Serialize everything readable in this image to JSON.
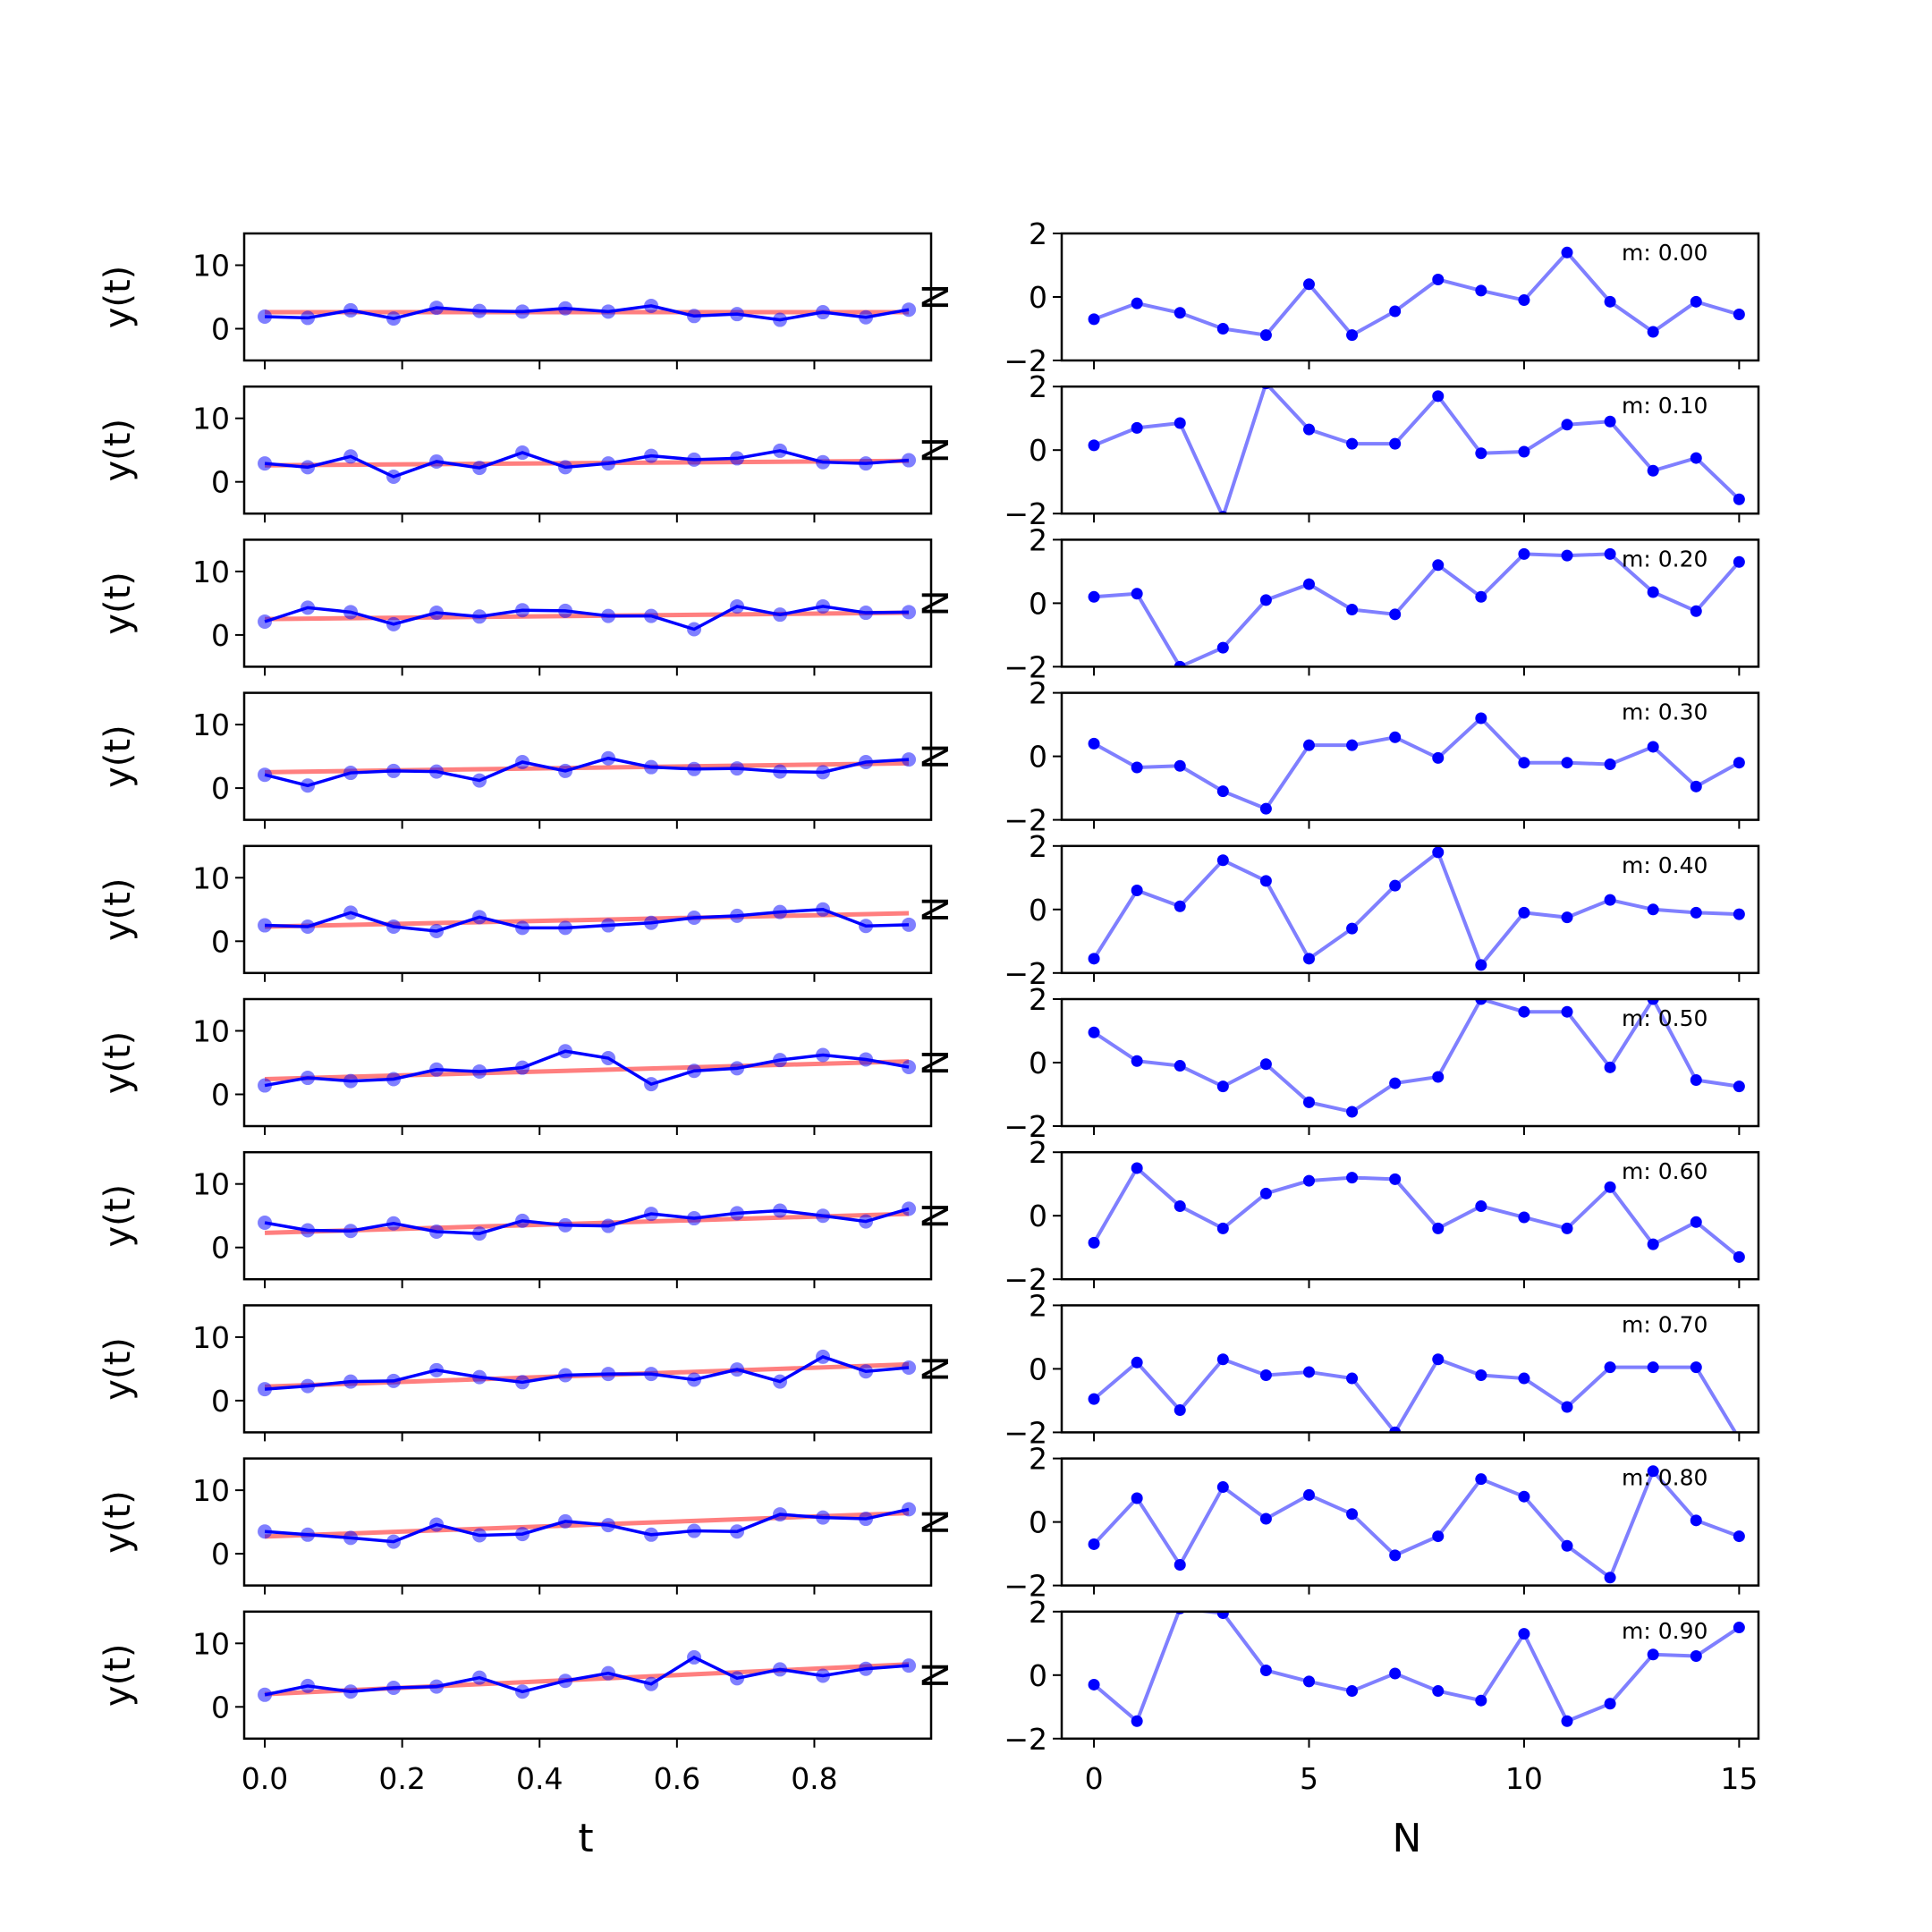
{
  "figure": {
    "left_xlabel": "t",
    "right_xlabel": "N",
    "left_ylabel": "y(t)",
    "right_ylabel": "N"
  },
  "chart_data": [
    {
      "type": "line",
      "panel": "left",
      "t": [
        0.0,
        0.0625,
        0.125,
        0.1875,
        0.25,
        0.3125,
        0.375,
        0.4375,
        0.5,
        0.5625,
        0.625,
        0.6875,
        0.75,
        0.8125,
        0.875,
        0.9375
      ],
      "xticks": [
        "0.0",
        "0.2",
        "0.4",
        "0.6",
        "0.8"
      ],
      "xtick_values": [
        0.0,
        0.2,
        0.4,
        0.6,
        0.8
      ],
      "xlim": [
        -0.03,
        0.97
      ],
      "ylim": [
        -5,
        15
      ],
      "yticks": [
        "0",
        "10"
      ],
      "ytick_values": [
        0,
        10
      ],
      "xlabel": "t",
      "ylabel": "y(t)",
      "colors": {
        "data": "#0000ff",
        "fit": "#ff7f7f"
      },
      "rows": [
        {
          "m": 0.0,
          "y": [
            1.9,
            1.7,
            2.9,
            1.6,
            3.3,
            2.8,
            2.7,
            3.2,
            2.7,
            3.6,
            2.0,
            2.3,
            1.4,
            2.6,
            1.8,
            3.0
          ],
          "fit": [
            2.6,
            2.6
          ]
        },
        {
          "m": 0.1,
          "y": [
            2.9,
            2.3,
            4.0,
            0.8,
            3.2,
            2.2,
            4.6,
            2.3,
            2.9,
            4.1,
            3.5,
            3.7,
            4.9,
            3.1,
            2.9,
            3.4
          ],
          "fit": [
            2.6,
            3.3
          ]
        },
        {
          "m": 0.2,
          "y": [
            2.1,
            4.3,
            3.6,
            1.7,
            3.5,
            2.9,
            3.9,
            3.8,
            3.0,
            3.0,
            0.9,
            4.5,
            3.2,
            4.5,
            3.5,
            3.6
          ],
          "fit": [
            2.5,
            3.5
          ]
        },
        {
          "m": 0.3,
          "y": [
            2.1,
            0.4,
            2.4,
            2.7,
            2.6,
            1.2,
            4.1,
            2.7,
            4.7,
            3.3,
            3.0,
            3.1,
            2.6,
            2.5,
            4.1,
            4.5
          ],
          "fit": [
            2.5,
            3.9
          ]
        },
        {
          "m": 0.4,
          "y": [
            2.5,
            2.3,
            4.5,
            2.3,
            1.6,
            3.8,
            2.1,
            2.1,
            2.5,
            2.9,
            3.7,
            4.0,
            4.6,
            5.0,
            2.4,
            2.6
          ],
          "fit": [
            2.3,
            4.4
          ]
        },
        {
          "m": 0.5,
          "y": [
            1.4,
            2.6,
            2.1,
            2.4,
            3.9,
            3.6,
            4.2,
            6.8,
            5.7,
            1.6,
            3.7,
            4.1,
            5.4,
            6.2,
            5.5,
            4.3
          ],
          "fit": [
            2.4,
            5.2
          ]
        },
        {
          "m": 0.6,
          "y": [
            3.9,
            2.7,
            2.6,
            3.8,
            2.5,
            2.2,
            4.2,
            3.5,
            3.4,
            5.3,
            4.6,
            5.4,
            5.8,
            5.0,
            4.1,
            6.1
          ],
          "fit": [
            2.3,
            5.3
          ]
        },
        {
          "m": 0.7,
          "y": [
            1.8,
            2.3,
            3.0,
            3.1,
            4.8,
            3.7,
            2.9,
            4.0,
            4.2,
            4.2,
            3.3,
            4.9,
            3.0,
            6.9,
            4.6,
            5.2
          ],
          "fit": [
            2.2,
            5.7
          ]
        },
        {
          "m": 0.8,
          "y": [
            3.5,
            3.0,
            2.5,
            1.9,
            4.6,
            2.9,
            3.1,
            5.1,
            4.5,
            3.0,
            3.6,
            3.5,
            6.2,
            5.7,
            5.5,
            7.0
          ],
          "fit": [
            2.7,
            6.4
          ]
        },
        {
          "m": 0.9,
          "y": [
            1.9,
            3.3,
            2.4,
            3.0,
            3.2,
            4.6,
            2.4,
            4.1,
            5.3,
            3.6,
            7.8,
            4.5,
            5.9,
            4.9,
            6.0,
            6.5
          ],
          "fit": [
            2.0,
            6.7
          ]
        }
      ]
    },
    {
      "type": "line",
      "panel": "right",
      "x": [
        0,
        1,
        2,
        3,
        4,
        5,
        6,
        7,
        8,
        9,
        10,
        11,
        12,
        13,
        14,
        15
      ],
      "xticks": [
        "0",
        "5",
        "10",
        "15"
      ],
      "xtick_values": [
        0,
        5,
        10,
        15
      ],
      "xlim": [
        -0.75,
        15.45
      ],
      "ylim": [
        -2,
        2
      ],
      "yticks": [
        "2",
        "0",
        "−2"
      ],
      "ytick_values": [
        2,
        0,
        -2
      ],
      "xlabel": "N",
      "ylabel": "N",
      "colors": {
        "line": "#7f7fff",
        "marker": "#0000ff"
      },
      "rows": [
        {
          "label": "m: 0.00",
          "y": [
            -0.7,
            -0.2,
            -0.5,
            -1.0,
            -1.2,
            0.4,
            -1.2,
            -0.45,
            0.55,
            0.2,
            -0.1,
            1.4,
            -0.15,
            -1.1,
            -0.15,
            -0.55
          ]
        },
        {
          "label": "m: 0.10",
          "y": [
            0.15,
            0.7,
            0.85,
            -2.1,
            2.1,
            0.65,
            0.2,
            0.2,
            1.7,
            -0.1,
            -0.05,
            0.8,
            0.9,
            -0.65,
            -0.25,
            -1.55
          ]
        },
        {
          "label": "m: 0.20",
          "y": [
            0.2,
            0.3,
            -2.0,
            -1.4,
            0.1,
            0.6,
            -0.2,
            -0.35,
            1.2,
            0.2,
            1.55,
            1.5,
            1.55,
            0.35,
            -0.25,
            1.3
          ]
        },
        {
          "label": "m: 0.30",
          "y": [
            0.4,
            -0.35,
            -0.3,
            -1.1,
            -1.65,
            0.35,
            0.35,
            0.6,
            -0.05,
            1.2,
            -0.2,
            -0.2,
            -0.25,
            0.3,
            -0.95,
            -0.2
          ]
        },
        {
          "label": "m: 0.40",
          "y": [
            -1.55,
            0.6,
            0.1,
            1.55,
            0.9,
            -1.55,
            -0.6,
            0.75,
            1.8,
            -1.75,
            -0.1,
            -0.25,
            0.3,
            0.0,
            -0.1,
            -0.15
          ]
        },
        {
          "label": "m: 0.50",
          "y": [
            0.95,
            0.05,
            -0.1,
            -0.75,
            -0.05,
            -1.25,
            -1.55,
            -0.65,
            -0.45,
            2.0,
            1.6,
            1.6,
            -0.15,
            2.0,
            -0.55,
            -0.75
          ]
        },
        {
          "label": "m: 0.60",
          "y": [
            -0.85,
            1.5,
            0.3,
            -0.4,
            0.7,
            1.1,
            1.2,
            1.15,
            -0.4,
            0.3,
            -0.05,
            -0.4,
            0.9,
            -0.9,
            -0.2,
            -1.3
          ]
        },
        {
          "label": "m: 0.70",
          "y": [
            -0.95,
            0.2,
            -1.3,
            0.3,
            -0.2,
            -0.1,
            -0.3,
            -2.0,
            0.3,
            -0.2,
            -0.3,
            -1.2,
            0.05,
            0.05,
            0.05,
            -2.2
          ]
        },
        {
          "label": "m: 0.80",
          "y": [
            -0.7,
            0.75,
            -1.35,
            1.1,
            0.1,
            0.85,
            0.25,
            -1.05,
            -0.45,
            1.35,
            0.8,
            -0.75,
            -1.75,
            1.6,
            0.05,
            -0.45
          ]
        },
        {
          "label": "m: 0.90",
          "y": [
            -0.3,
            -1.45,
            2.1,
            1.95,
            0.15,
            -0.2,
            -0.5,
            0.05,
            -0.5,
            -0.8,
            1.3,
            -1.45,
            -0.9,
            0.65,
            0.6,
            1.5
          ]
        }
      ]
    }
  ]
}
